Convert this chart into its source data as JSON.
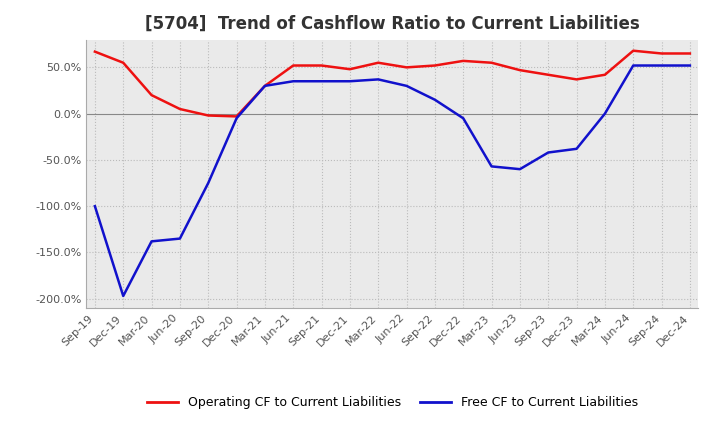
{
  "title": "[5704]  Trend of Cashflow Ratio to Current Liabilities",
  "x_labels": [
    "Sep-19",
    "Dec-19",
    "Mar-20",
    "Jun-20",
    "Sep-20",
    "Dec-20",
    "Mar-21",
    "Jun-21",
    "Sep-21",
    "Dec-21",
    "Mar-22",
    "Jun-22",
    "Sep-22",
    "Dec-22",
    "Mar-23",
    "Jun-23",
    "Sep-23",
    "Dec-23",
    "Mar-24",
    "Jun-24",
    "Sep-24",
    "Dec-24"
  ],
  "operating_cf": [
    67,
    55,
    20,
    5,
    -2,
    -3,
    30,
    52,
    52,
    48,
    55,
    50,
    52,
    57,
    55,
    47,
    42,
    37,
    42,
    68,
    65,
    65
  ],
  "free_cf": [
    -100,
    -197,
    -138,
    -135,
    -75,
    -5,
    30,
    35,
    35,
    35,
    37,
    30,
    15,
    -5,
    -57,
    -60,
    -42,
    -38,
    0,
    52,
    52,
    52
  ],
  "operating_color": "#EE1111",
  "free_color": "#1111CC",
  "ylim": [
    -210,
    80
  ],
  "yticks": [
    -200,
    -150,
    -100,
    -50,
    0,
    50
  ],
  "ytick_labels": [
    "-200.0%",
    "-150.0%",
    "-100.0%",
    "-50.0%",
    "0.0%",
    "50.0%"
  ],
  "legend_operating": "Operating CF to Current Liabilities",
  "legend_free": "Free CF to Current Liabilities",
  "bg_color": "#FFFFFF",
  "plot_bg_color": "#EAEAEA",
  "grid_color": "#BBBBBB",
  "title_fontsize": 12,
  "label_fontsize": 8,
  "legend_fontsize": 9
}
